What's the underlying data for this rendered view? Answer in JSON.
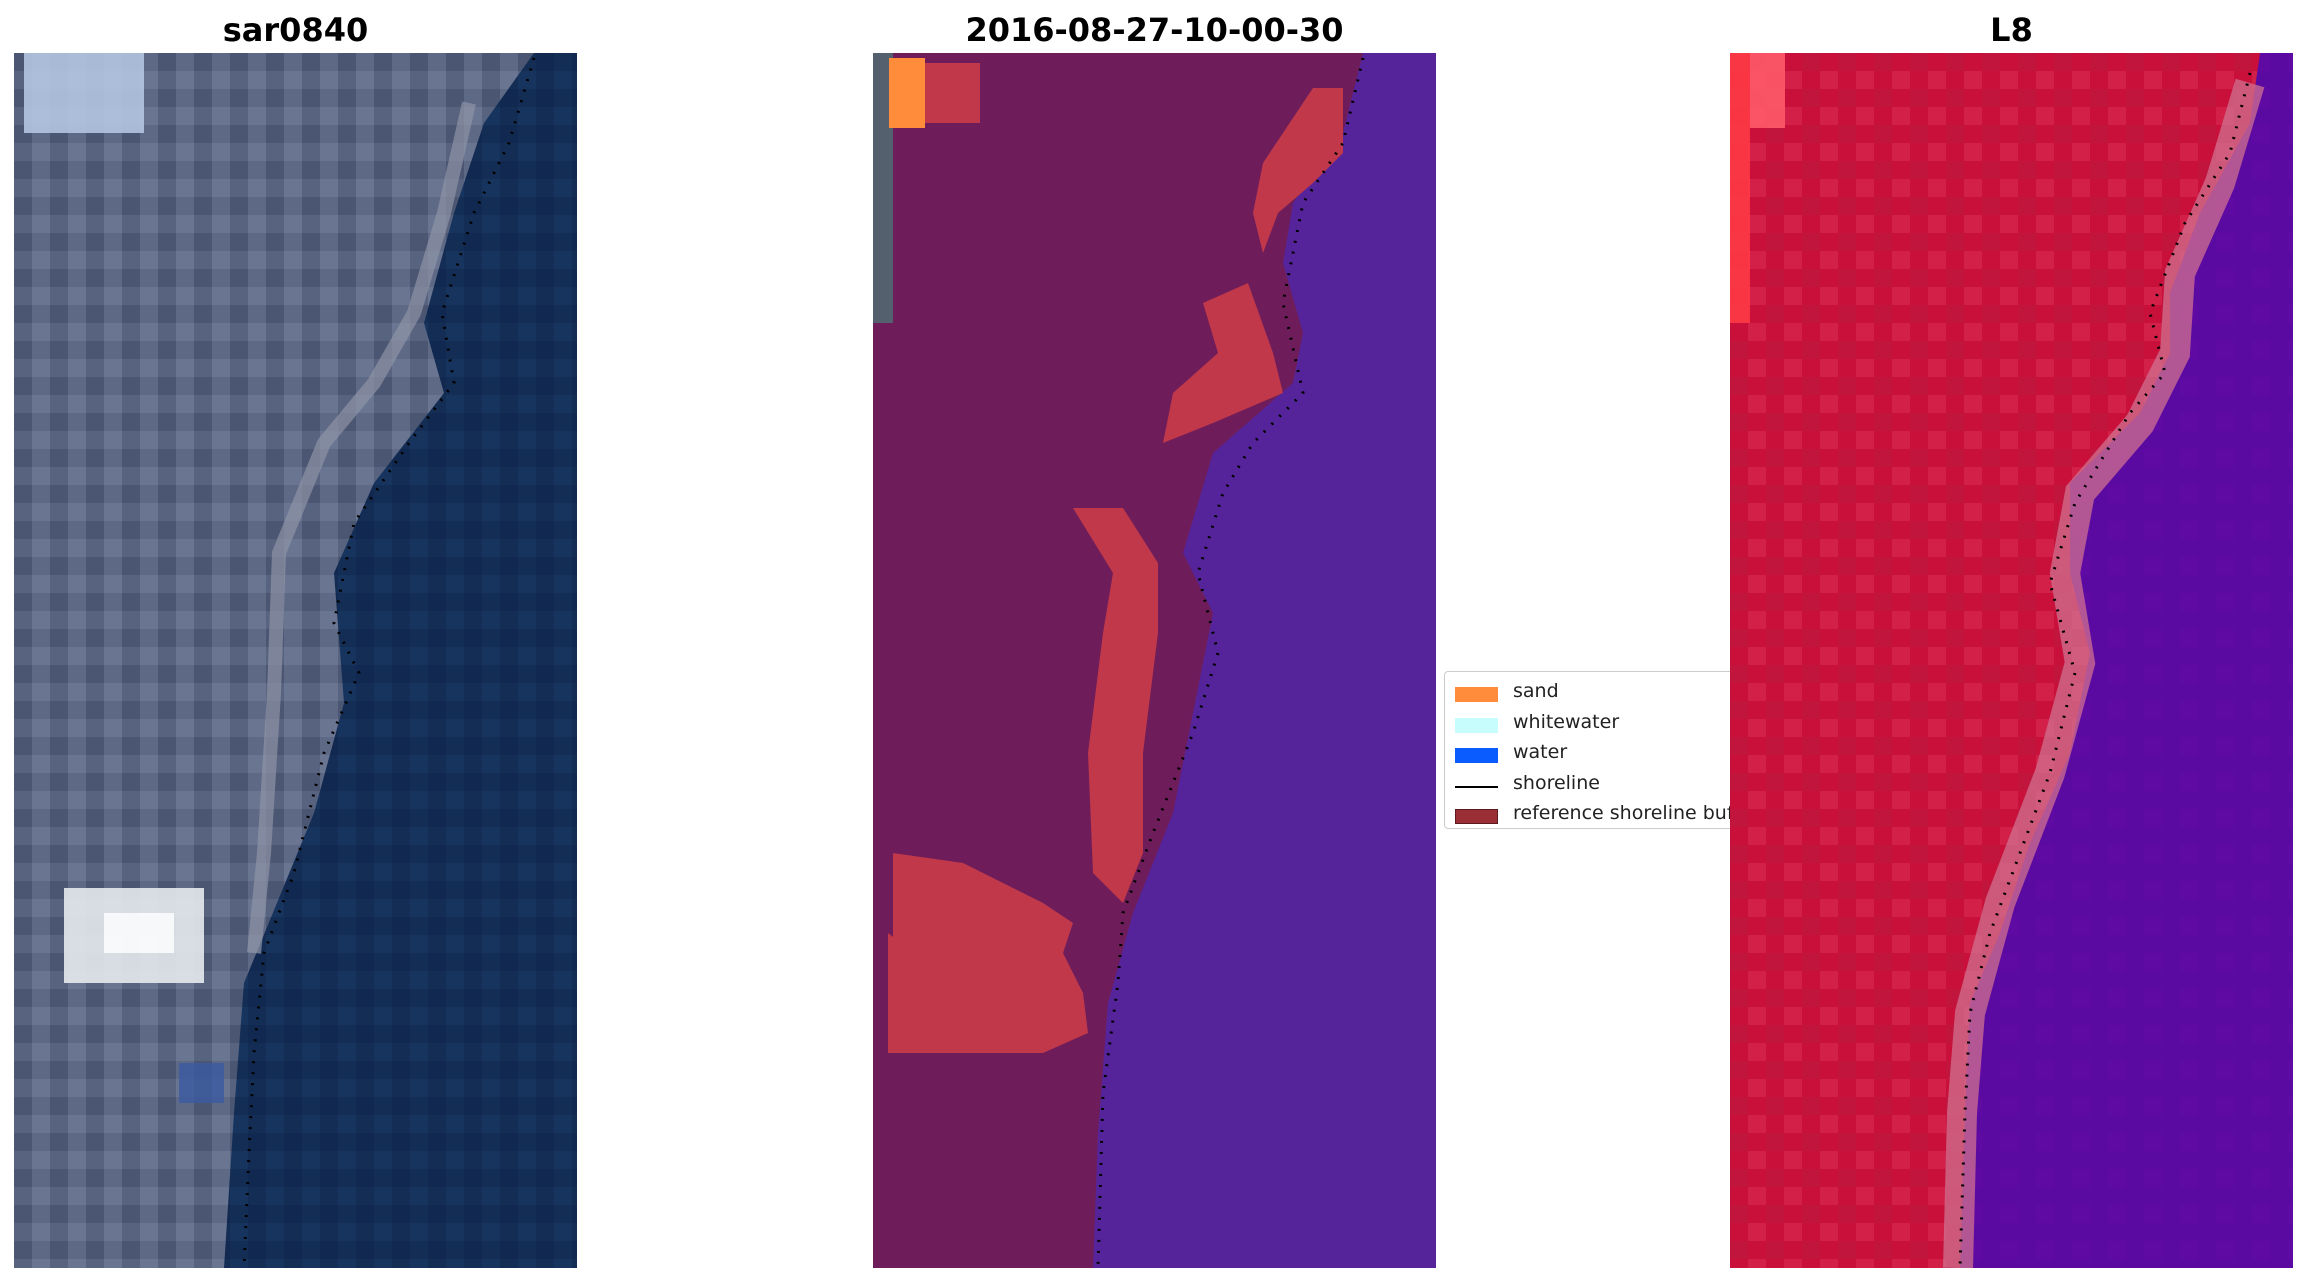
{
  "panels": [
    {
      "title": "sar0840"
    },
    {
      "title": "2016-08-27-10-00-30"
    },
    {
      "title": "L8"
    }
  ],
  "legend": {
    "items": [
      {
        "label": "sand",
        "color": "#ff8c3a"
      },
      {
        "label": "whitewater",
        "color": "#c8fdfd"
      },
      {
        "label": "water",
        "color": "#0b5cff"
      },
      {
        "label": "shoreline",
        "color": "#000000"
      },
      {
        "label": "reference shoreline buffer",
        "color": "#9b2f36"
      }
    ]
  },
  "colors": {
    "ocean_rgb": "#13305a",
    "land_rgb": "#5a6684",
    "classified_land": "#6f1d5a",
    "classified_water": "#56249a",
    "classified_sand": "#c0384a",
    "false_color_land": "#c8103a",
    "false_color_water": "#5c0aa0"
  }
}
